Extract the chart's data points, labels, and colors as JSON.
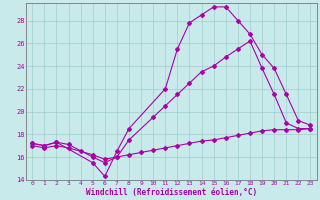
{
  "xlabel": "Windchill (Refroidissement éolien,°C)",
  "bg_color": "#c8eaea",
  "grid_color": "#a0cccc",
  "line_color": "#aa00aa",
  "xlim": [
    -0.5,
    23.5
  ],
  "ylim": [
    14,
    29.5
  ],
  "yticks": [
    14,
    16,
    18,
    20,
    22,
    24,
    26,
    28
  ],
  "xticks": [
    0,
    1,
    2,
    3,
    4,
    5,
    6,
    7,
    8,
    9,
    10,
    11,
    12,
    13,
    14,
    15,
    16,
    17,
    18,
    19,
    20,
    21,
    22,
    23
  ],
  "lines": [
    {
      "x": [
        0,
        1,
        2,
        5,
        6,
        7,
        8,
        11,
        12,
        13,
        14,
        15,
        16,
        17,
        18,
        19,
        20,
        21,
        22,
        23
      ],
      "y": [
        17.2,
        17.0,
        17.3,
        15.5,
        14.3,
        16.5,
        18.5,
        22.0,
        25.5,
        27.8,
        28.5,
        29.2,
        29.2,
        28.0,
        26.8,
        25.0,
        23.8,
        21.5,
        19.2,
        18.8
      ]
    },
    {
      "x": [
        0,
        1,
        2,
        3,
        5,
        6,
        7,
        8,
        10,
        11,
        12,
        13,
        14,
        15,
        16,
        17,
        18,
        19,
        20,
        21,
        22,
        23
      ],
      "y": [
        17.2,
        17.0,
        17.3,
        17.1,
        16.0,
        15.5,
        16.0,
        17.5,
        19.5,
        20.5,
        21.5,
        22.5,
        23.5,
        24.0,
        24.8,
        25.5,
        26.2,
        23.8,
        21.5,
        19.0,
        18.5,
        18.5
      ]
    },
    {
      "x": [
        0,
        1,
        2,
        3,
        4,
        5,
        6,
        7,
        8,
        9,
        10,
        11,
        12,
        13,
        14,
        15,
        16,
        17,
        18,
        19,
        20,
        21,
        22,
        23
      ],
      "y": [
        17.0,
        16.8,
        17.0,
        16.8,
        16.5,
        16.2,
        15.8,
        16.0,
        16.2,
        16.4,
        16.6,
        16.8,
        17.0,
        17.2,
        17.4,
        17.5,
        17.7,
        17.9,
        18.1,
        18.3,
        18.4,
        18.4,
        18.4,
        18.5
      ]
    }
  ]
}
